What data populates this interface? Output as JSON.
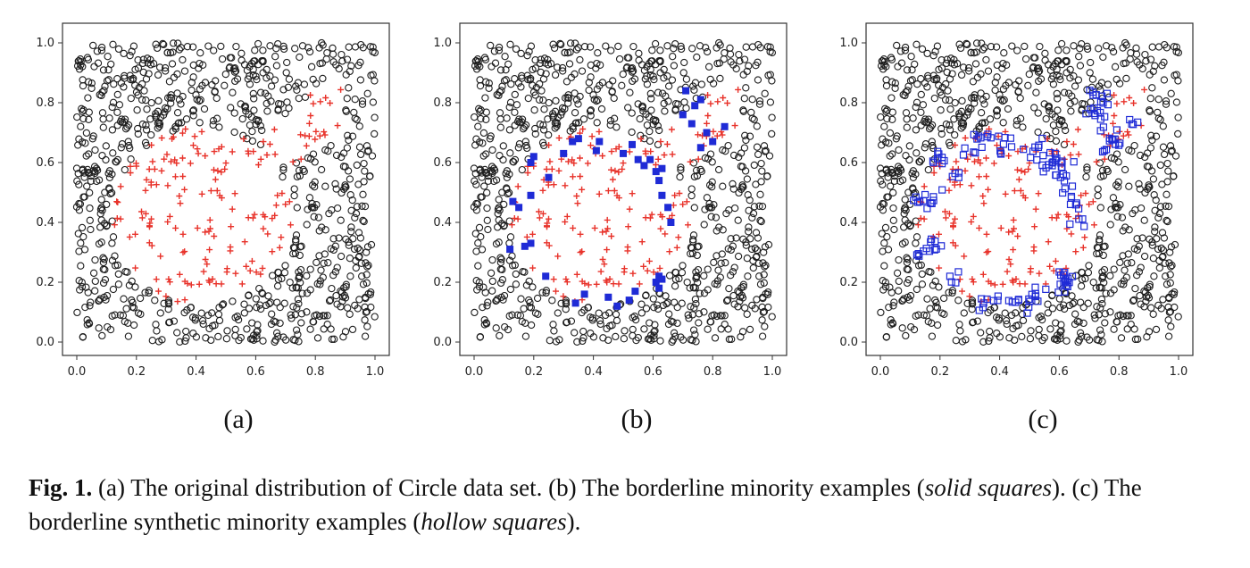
{
  "chart_data": [
    {
      "type": "scatter",
      "panel": "a",
      "label": "(a)",
      "xlim": [
        0.0,
        1.0
      ],
      "ylim": [
        0.0,
        1.0
      ],
      "x_ticks": [
        "0.0",
        "0.2",
        "0.4",
        "0.6",
        "0.8",
        "1.0"
      ],
      "y_ticks": [
        "0.0",
        "0.2",
        "0.4",
        "0.6",
        "0.8",
        "1.0"
      ],
      "series": [
        {
          "marker": "hollow-circle",
          "color": "#222222",
          "region": "outside circle (center 0.42,0.42; r 0.30) and outside wedge toward (0.80,0.72)"
        },
        {
          "marker": "plus",
          "color": "#e8322a",
          "region": "inside circle and wedge"
        }
      ]
    },
    {
      "type": "scatter",
      "panel": "b",
      "label": "(b)",
      "xlim": [
        0.0,
        1.0
      ],
      "ylim": [
        0.0,
        1.0
      ],
      "x_ticks": [
        "0.0",
        "0.2",
        "0.4",
        "0.6",
        "0.8",
        "1.0"
      ],
      "y_ticks": [
        "0.0",
        "0.2",
        "0.4",
        "0.6",
        "0.8",
        "1.0"
      ],
      "series": [
        {
          "marker": "hollow-circle",
          "color": "#222222"
        },
        {
          "marker": "plus",
          "color": "#e8322a"
        },
        {
          "marker": "solid-square",
          "color": "#1f2bd6",
          "points": [
            [
              0.19,
              0.6
            ],
            [
              0.2,
              0.62
            ],
            [
              0.33,
              0.67
            ],
            [
              0.35,
              0.68
            ],
            [
              0.3,
              0.63
            ],
            [
              0.41,
              0.64
            ],
            [
              0.5,
              0.63
            ],
            [
              0.55,
              0.61
            ],
            [
              0.57,
              0.59
            ],
            [
              0.61,
              0.57
            ],
            [
              0.63,
              0.58
            ],
            [
              0.62,
              0.54
            ],
            [
              0.63,
              0.49
            ],
            [
              0.65,
              0.45
            ],
            [
              0.66,
              0.4
            ],
            [
              0.13,
              0.47
            ],
            [
              0.15,
              0.45
            ],
            [
              0.19,
              0.49
            ],
            [
              0.12,
              0.31
            ],
            [
              0.17,
              0.32
            ],
            [
              0.19,
              0.33
            ],
            [
              0.24,
              0.22
            ],
            [
              0.34,
              0.13
            ],
            [
              0.37,
              0.16
            ],
            [
              0.45,
              0.15
            ],
            [
              0.48,
              0.12
            ],
            [
              0.52,
              0.14
            ],
            [
              0.54,
              0.17
            ],
            [
              0.61,
              0.2
            ],
            [
              0.62,
              0.22
            ],
            [
              0.63,
              0.21
            ],
            [
              0.62,
              0.18
            ],
            [
              0.71,
              0.84
            ],
            [
              0.74,
              0.79
            ],
            [
              0.76,
              0.81
            ],
            [
              0.7,
              0.76
            ],
            [
              0.73,
              0.73
            ],
            [
              0.78,
              0.7
            ],
            [
              0.84,
              0.72
            ],
            [
              0.76,
              0.65
            ],
            [
              0.8,
              0.67
            ],
            [
              0.25,
              0.55
            ],
            [
              0.59,
              0.61
            ],
            [
              0.53,
              0.66
            ],
            [
              0.42,
              0.67
            ]
          ]
        }
      ]
    },
    {
      "type": "scatter",
      "panel": "c",
      "label": "(c)",
      "xlim": [
        0.0,
        1.0
      ],
      "ylim": [
        0.0,
        1.0
      ],
      "x_ticks": [
        "0.0",
        "0.2",
        "0.4",
        "0.6",
        "0.8",
        "1.0"
      ],
      "y_ticks": [
        "0.0",
        "0.2",
        "0.4",
        "0.6",
        "0.8",
        "1.0"
      ],
      "series": [
        {
          "marker": "hollow-circle",
          "color": "#222222"
        },
        {
          "marker": "plus",
          "color": "#e8322a"
        },
        {
          "marker": "hollow-square",
          "color": "#1f2bd6",
          "note": "synthetic examples clustered along the circle border and the upper-right wedge"
        }
      ]
    }
  ],
  "caption": {
    "fig_label": "Fig. 1.",
    "part_a": " (a) The original distribution of Circle data set. (b) The borderline minority examples (",
    "solid_squares": "solid squares",
    "part_b": "). (c) The borderline synthetic minority examples (",
    "hollow_squares": "hollow squares",
    "part_c": ")."
  }
}
